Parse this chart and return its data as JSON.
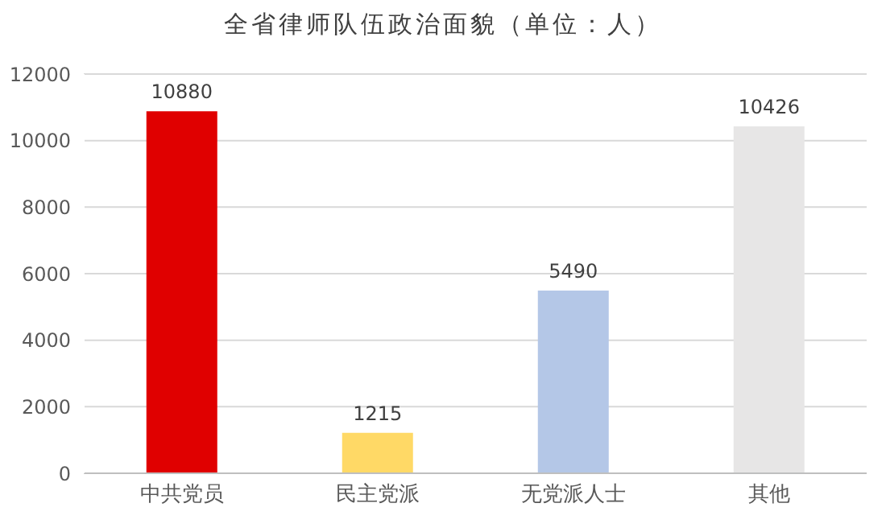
{
  "chart_data": {
    "type": "bar",
    "title": "全省律师队伍政治面貌（单位：人）",
    "categories": [
      "中共党员",
      "民主党派",
      "无党派人士",
      "其他"
    ],
    "values": [
      10880,
      1215,
      5490,
      10426
    ],
    "colors": [
      "#e00000",
      "#ffd966",
      "#b4c7e7",
      "#e7e6e6"
    ],
    "ylim": [
      0,
      12000
    ],
    "yticks": [
      0,
      2000,
      4000,
      6000,
      8000,
      10000,
      12000
    ],
    "grid": "y",
    "data_labels": true
  }
}
